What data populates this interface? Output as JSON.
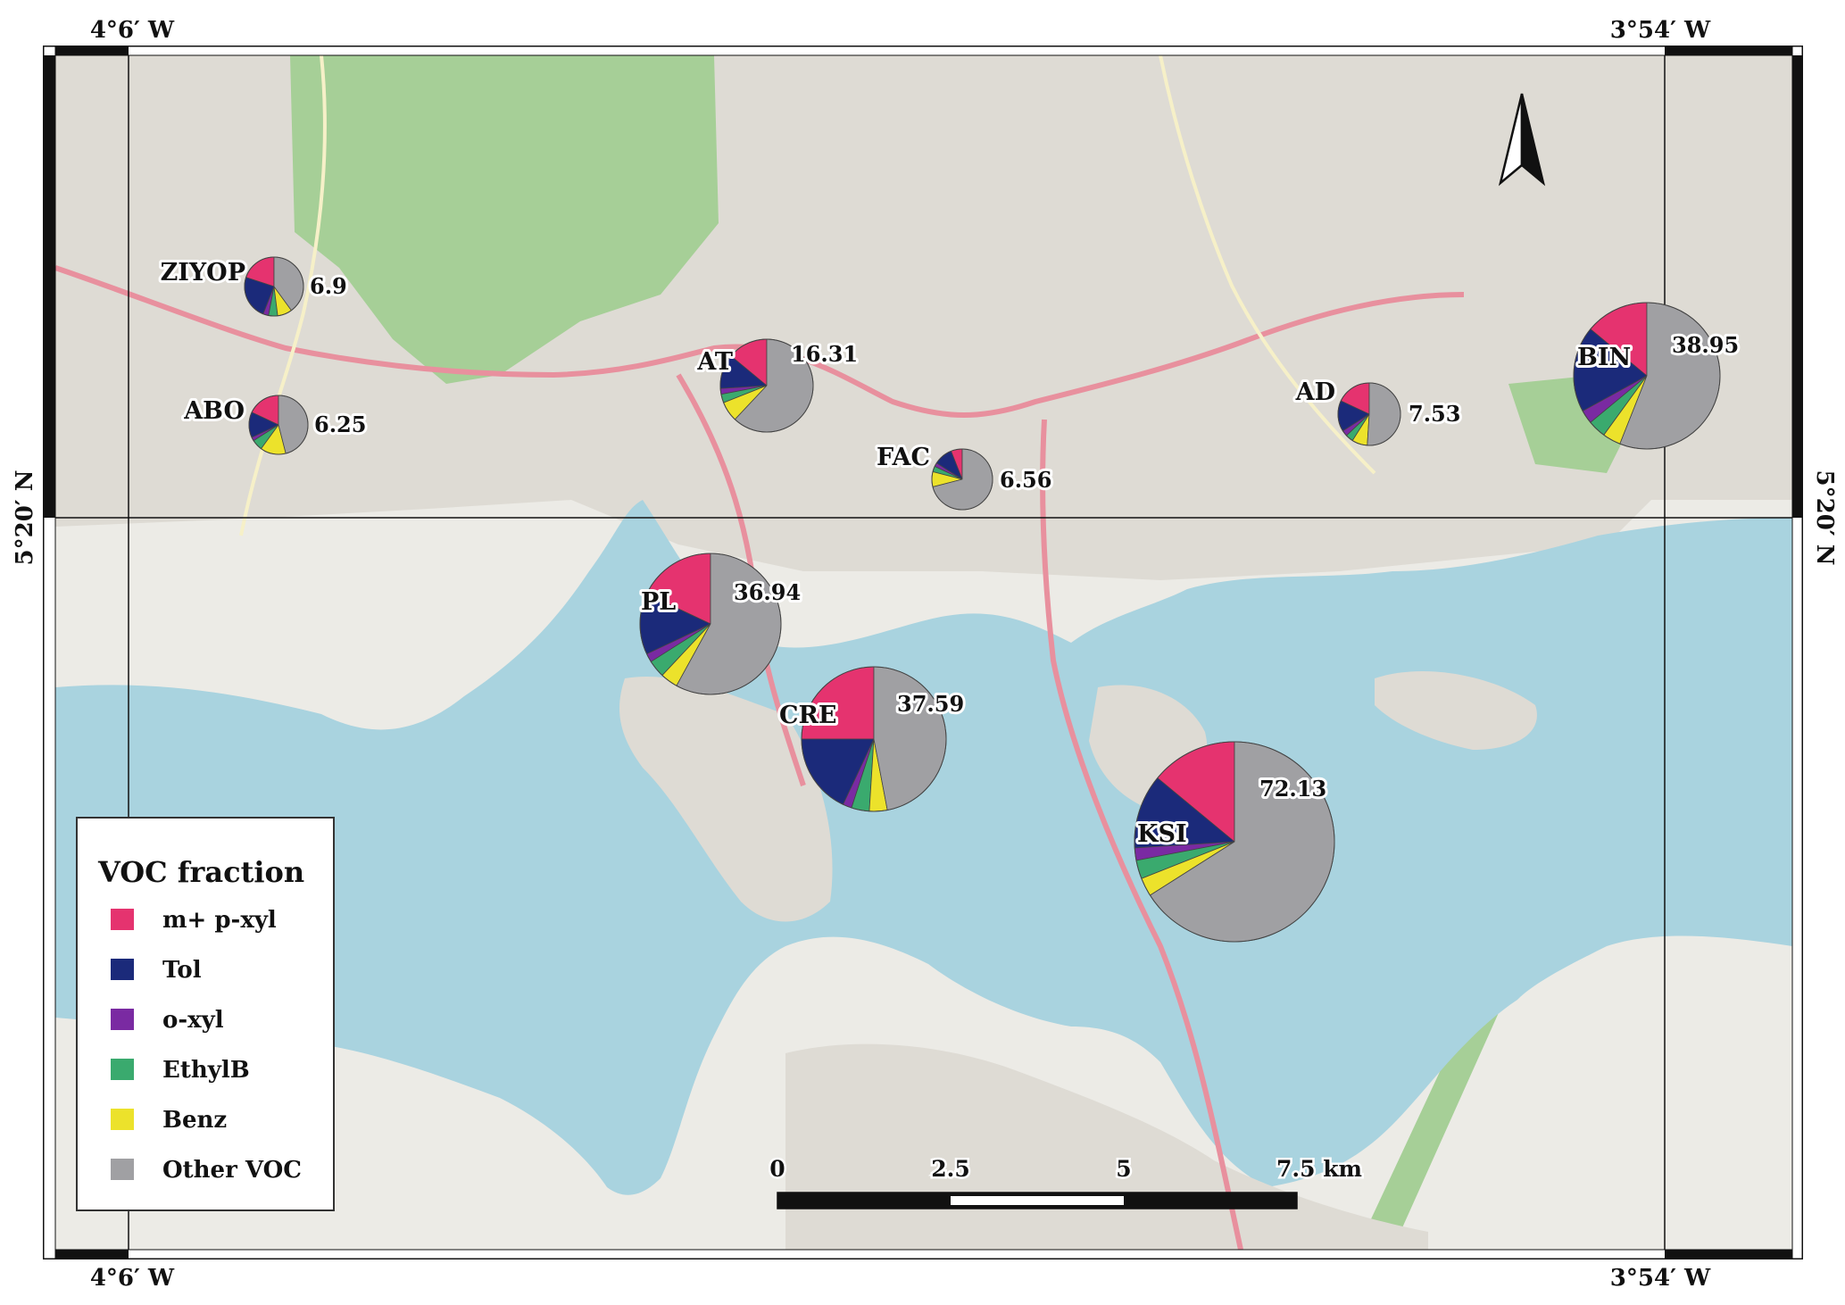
{
  "map": {
    "coords": {
      "top_left": "4°6′ W",
      "top_right": "3°54′ W",
      "bottom_left": "4°6′ W",
      "bottom_right": "3°54′ W",
      "left_lat": "5°20′ N",
      "right_lat": "5°20′ N"
    },
    "colors": {
      "land": "#ecebe6",
      "water": "#a9d3df",
      "forest": "#a6cf97",
      "urban": "#dedbd4",
      "road_major": "#e8909e",
      "road_minor": "#f6f0c8"
    }
  },
  "legend": {
    "title": "VOC fraction",
    "items": [
      {
        "label": "m+ p-xyl",
        "color": "#e5336f"
      },
      {
        "label": "Tol",
        "color": "#1b2a7a"
      },
      {
        "label": "o-xyl",
        "color": "#7a2aa2"
      },
      {
        "label": "EthylB",
        "color": "#3aaa6e"
      },
      {
        "label": "Benz",
        "color": "#ece22b"
      },
      {
        "label": "Other VOC",
        "color": "#a0a0a3"
      }
    ]
  },
  "scale_bar": {
    "labels": [
      "0",
      "2.5",
      "5",
      "7.5 km"
    ]
  },
  "sites": [
    {
      "name": "ZIYOP",
      "value": "6.9",
      "fractions": [
        0.2,
        0.24,
        0.03,
        0.05,
        0.08,
        0.4
      ]
    },
    {
      "name": "ABO",
      "value": "6.25",
      "fractions": [
        0.18,
        0.14,
        0.02,
        0.06,
        0.14,
        0.46
      ]
    },
    {
      "name": "AT",
      "value": "16.31",
      "fractions": [
        0.14,
        0.12,
        0.02,
        0.03,
        0.07,
        0.62
      ]
    },
    {
      "name": "FAC",
      "value": "6.56",
      "fractions": [
        0.06,
        0.1,
        0.02,
        0.03,
        0.08,
        0.71
      ]
    },
    {
      "name": "AD",
      "value": "7.53",
      "fractions": [
        0.18,
        0.16,
        0.03,
        0.04,
        0.08,
        0.51
      ]
    },
    {
      "name": "BIN",
      "value": "38.95",
      "fractions": [
        0.14,
        0.19,
        0.03,
        0.04,
        0.04,
        0.56
      ]
    },
    {
      "name": "PL",
      "value": "36.94",
      "fractions": [
        0.18,
        0.14,
        0.02,
        0.04,
        0.04,
        0.58
      ]
    },
    {
      "name": "CRE",
      "value": "37.59",
      "fractions": [
        0.25,
        0.18,
        0.02,
        0.04,
        0.04,
        0.47
      ]
    },
    {
      "name": "KSI",
      "value": "72.13",
      "fractions": [
        0.14,
        0.12,
        0.02,
        0.03,
        0.03,
        0.66
      ]
    }
  ]
}
